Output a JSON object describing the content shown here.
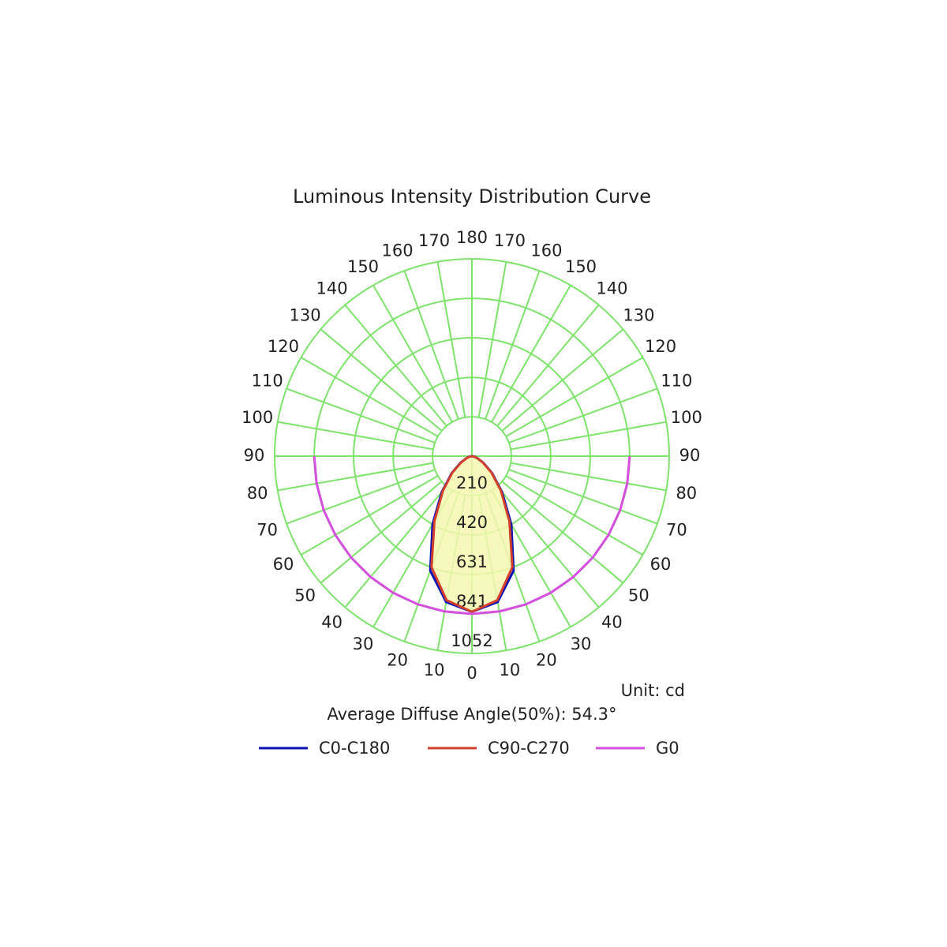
{
  "chart_data": {
    "type": "polar",
    "title": "Luminous Intensity Distribution Curve",
    "unit_label": "Unit: cd",
    "note": "Average Diffuse Angle(50%): 54.3°",
    "angles": [
      0,
      10,
      20,
      30,
      40,
      50,
      60,
      70,
      80,
      90
    ],
    "angle_ticks": [
      0,
      10,
      20,
      30,
      40,
      50,
      60,
      70,
      80,
      90,
      100,
      110,
      120,
      130,
      140,
      150,
      160,
      170,
      180
    ],
    "rlim": [
      0,
      1052
    ],
    "rticks": [
      210,
      420,
      631,
      841,
      1052
    ],
    "grid_color": "#7de36b",
    "fill_color": "#f6f7b0",
    "series": [
      {
        "name": "C0-C180",
        "color": "#0a14b4",
        "values": [
          830,
          790,
          650,
          420,
          250,
          140,
          70,
          30,
          10,
          0
        ]
      },
      {
        "name": "C90-C270",
        "color": "#d2402c",
        "values": [
          830,
          780,
          630,
          400,
          240,
          135,
          65,
          28,
          8,
          0
        ]
      },
      {
        "name": "G0",
        "color": "#d64fe0",
        "values": [
          841,
          841,
          841,
          841,
          841,
          841,
          841,
          841,
          841,
          841
        ]
      }
    ]
  }
}
